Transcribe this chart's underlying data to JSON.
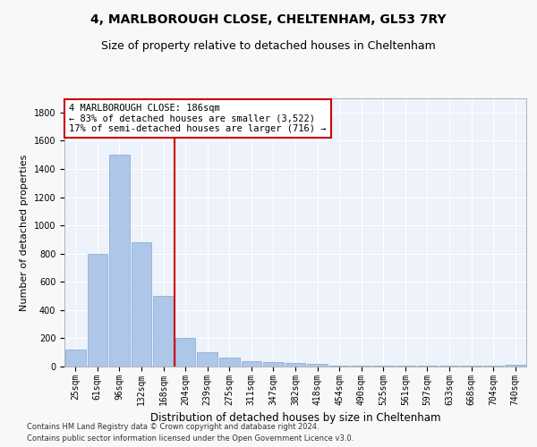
{
  "title": "4, MARLBOROUGH CLOSE, CHELTENHAM, GL53 7RY",
  "subtitle": "Size of property relative to detached houses in Cheltenham",
  "xlabel": "Distribution of detached houses by size in Cheltenham",
  "ylabel": "Number of detached properties",
  "categories": [
    "25sqm",
    "61sqm",
    "96sqm",
    "132sqm",
    "168sqm",
    "204sqm",
    "239sqm",
    "275sqm",
    "311sqm",
    "347sqm",
    "382sqm",
    "418sqm",
    "454sqm",
    "490sqm",
    "525sqm",
    "561sqm",
    "597sqm",
    "633sqm",
    "668sqm",
    "704sqm",
    "740sqm"
  ],
  "values": [
    120,
    800,
    1500,
    880,
    500,
    205,
    100,
    65,
    40,
    30,
    25,
    20,
    5,
    5,
    5,
    5,
    5,
    5,
    5,
    5,
    10
  ],
  "bar_color": "#aec6e8",
  "bar_edge_color": "#7aaad0",
  "vline_color": "#cc0000",
  "annotation_text": "4 MARLBOROUGH CLOSE: 186sqm\n← 83% of detached houses are smaller (3,522)\n17% of semi-detached houses are larger (716) →",
  "annotation_box_color": "#ffffff",
  "annotation_box_edge": "#cc0000",
  "ylim": [
    0,
    1900
  ],
  "yticks": [
    0,
    200,
    400,
    600,
    800,
    1000,
    1200,
    1400,
    1600,
    1800
  ],
  "footnote1": "Contains HM Land Registry data © Crown copyright and database right 2024.",
  "footnote2": "Contains public sector information licensed under the Open Government Licence v3.0.",
  "background_color": "#eef2fa",
  "grid_color": "#ffffff",
  "fig_background": "#f8f8f8",
  "title_fontsize": 10,
  "subtitle_fontsize": 9,
  "ylabel_fontsize": 8,
  "xlabel_fontsize": 8.5,
  "tick_fontsize": 7,
  "annot_fontsize": 7.5,
  "footnote_fontsize": 6
}
